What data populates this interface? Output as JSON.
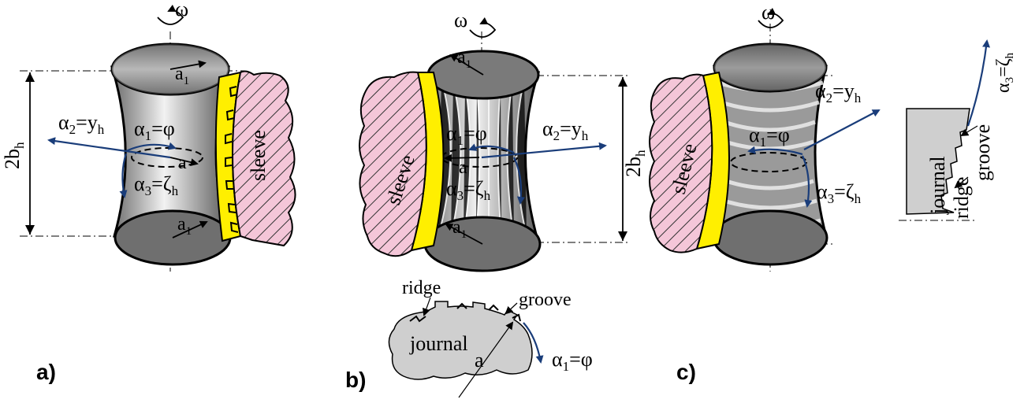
{
  "labels": {
    "omega": "ω",
    "two_b_h": "2b",
    "two_b_h_sub": "h",
    "alpha2": "α",
    "alpha2_sub": "2",
    "alpha2_rhs": "=y",
    "alpha2_rhs_sub": "h",
    "alpha1": "α",
    "alpha1_sub": "1",
    "alpha1_rhs": "=φ",
    "alpha3": "α",
    "alpha3_sub": "3",
    "alpha3_rhs": "=ζ",
    "alpha3_rhs_sub": "h",
    "a": "a",
    "a1": "a",
    "a1_sub": "1",
    "sleeve": "sleeve",
    "journal": "journal",
    "ridge": "ridge",
    "groove": "groove"
  },
  "panels": {
    "a": "a)",
    "b": "b)",
    "c": "c)"
  },
  "colors": {
    "sleeve_fill": "#f4c6d8",
    "film": "#ffef00",
    "journal_fill": "#cfcfcf",
    "axis_blue": "#1a3d7a",
    "cylinder_dark": "#6f6f6f"
  }
}
